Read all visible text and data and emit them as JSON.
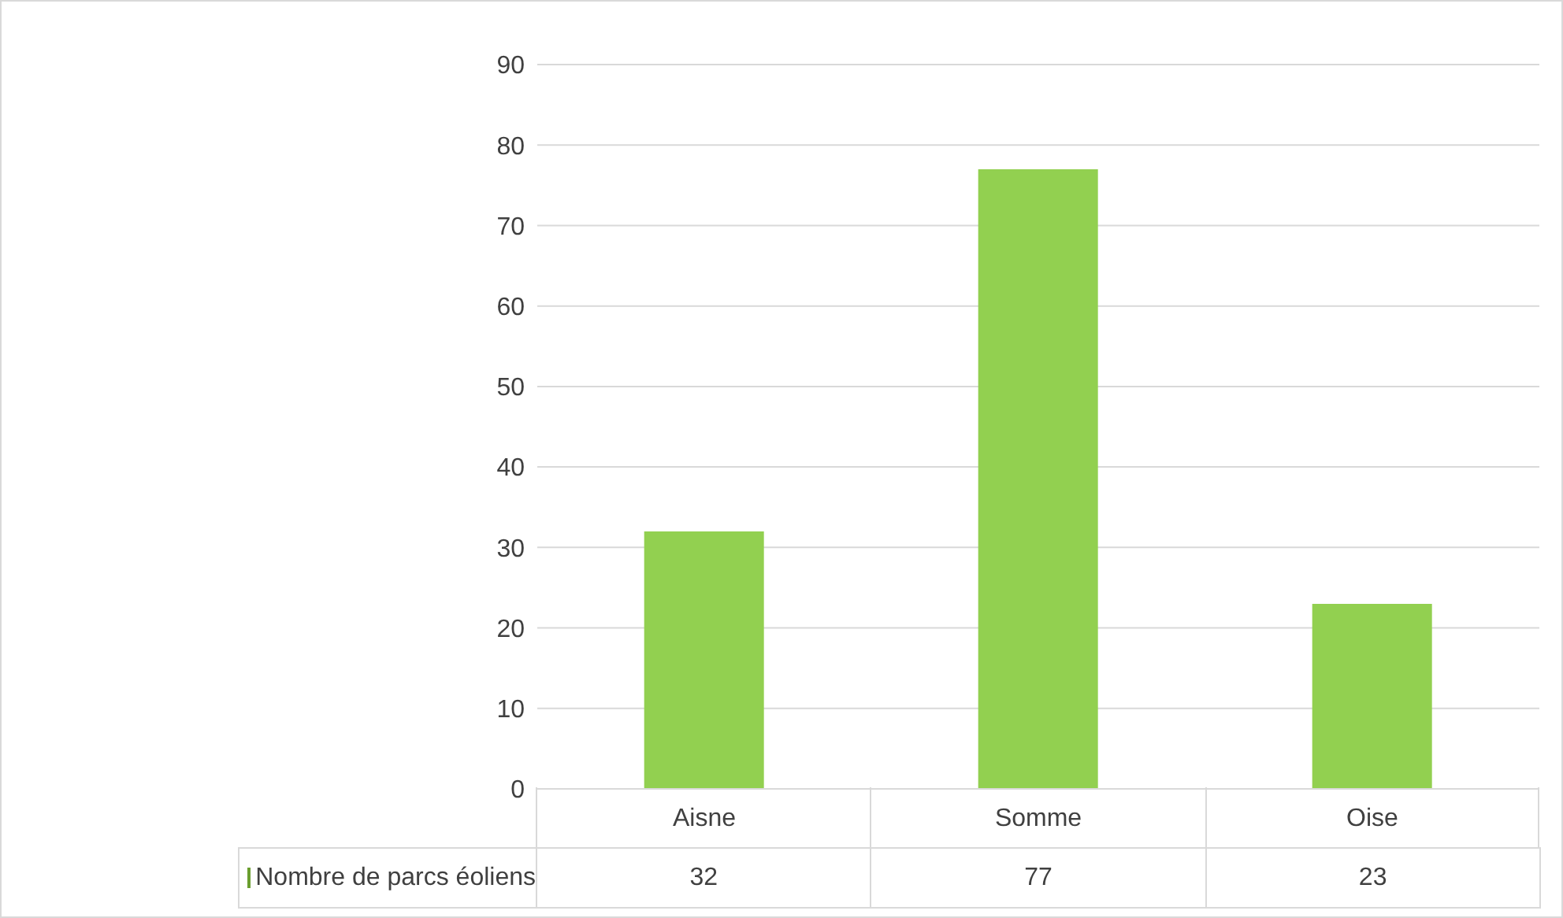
{
  "chart_data": {
    "type": "bar",
    "categories": [
      "Aisne",
      "Somme",
      "Oise"
    ],
    "series": [
      {
        "name": "Nombre de parcs éoliens",
        "color": "#92d050",
        "values": [
          32,
          77,
          23
        ]
      }
    ],
    "ylim": [
      0,
      90
    ],
    "yticks": [
      0,
      10,
      20,
      30,
      40,
      50,
      60,
      70,
      80,
      90
    ],
    "grid": "y",
    "legend": "bottom left",
    "data_labels": true
  }
}
